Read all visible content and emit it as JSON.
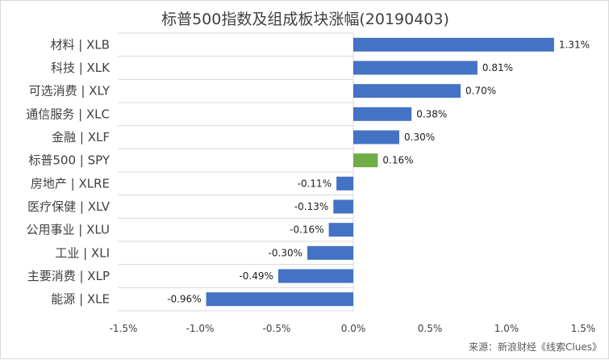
{
  "chart_data": {
    "type": "bar",
    "orientation": "horizontal",
    "title": "标普500指数及组成板块涨幅(20190403)",
    "categories": [
      "材料 | XLB",
      "科技 | XLK",
      "可选消费 | XLY",
      "通信服务 | XLC",
      "金融 | XLF",
      "标普500 | SPY",
      "房地产 | XLRE",
      "医疗保健 | XLV",
      "公用事业 | XLU",
      "工业 | XLI",
      "主要消费 | XLP",
      "能源 | XLE"
    ],
    "values": [
      1.31,
      0.81,
      0.7,
      0.38,
      0.3,
      0.16,
      -0.11,
      -0.13,
      -0.16,
      -0.3,
      -0.49,
      -0.96
    ],
    "data_labels": [
      "1.31%",
      "0.81%",
      "0.70%",
      "0.38%",
      "0.30%",
      "0.16%",
      "-0.11%",
      "-0.13%",
      "-0.16%",
      "-0.30%",
      "-0.49%",
      "-0.96%"
    ],
    "xlim": [
      -1.5,
      1.5
    ],
    "x_ticks": [
      -1.5,
      -1.0,
      -0.5,
      0.0,
      0.5,
      1.0,
      1.5
    ],
    "x_tick_labels": [
      "-1.5%",
      "-1.0%",
      "-0.5%",
      "0.0%",
      "0.5%",
      "1.0%",
      "1.5%"
    ],
    "xlabel": "",
    "ylabel": "",
    "grid": false,
    "colors": {
      "default": "#4472c4",
      "highlight": "#70ad47",
      "axis": "#d9d9d9"
    },
    "highlight_category": "标普500 | SPY"
  },
  "source_note": "来源：新浪财经《线索Clues》"
}
